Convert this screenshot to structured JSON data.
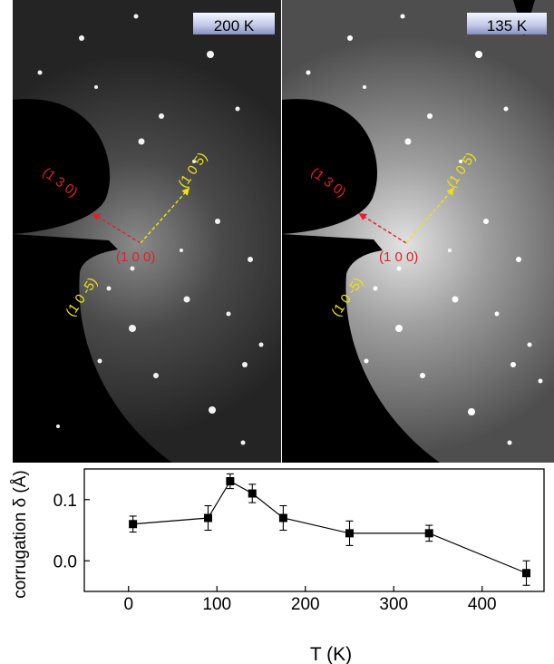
{
  "panels": [
    {
      "temperature_label": "200 K",
      "spots": [
        {
          "label": "(1 3 0)",
          "color": "#e0202a"
        },
        {
          "label": "(1 0 5)",
          "color": "#f0e018"
        },
        {
          "label": "(1 0 0)",
          "color": "#e0202a"
        },
        {
          "label": "(1 0 -5)",
          "color": "#f0e018"
        }
      ]
    },
    {
      "temperature_label": "135 K",
      "spots": [
        {
          "label": "(1 3 0)",
          "color": "#e0202a"
        },
        {
          "label": "(1 0 5)",
          "color": "#f0e018"
        },
        {
          "label": "(1 0 0)",
          "color": "#e0202a"
        },
        {
          "label": "(1 0 -5)",
          "color": "#f0e018"
        }
      ]
    }
  ],
  "chart_data": {
    "type": "line",
    "xlabel": "T (K)",
    "ylabel": "corrugation δ (Å)",
    "xlim": [
      -50,
      470
    ],
    "ylim": [
      -0.05,
      0.15
    ],
    "xticks": [
      0,
      100,
      200,
      300,
      400
    ],
    "yticks": [
      0.0,
      0.1
    ],
    "ytick_labels": [
      "0.0",
      "0.1"
    ],
    "marker": "square",
    "color": "#000000",
    "grid": false,
    "series": [
      {
        "x": [
          5,
          90,
          115,
          140,
          175,
          250,
          340,
          450
        ],
        "y": [
          0.06,
          0.07,
          0.13,
          0.11,
          0.07,
          0.045,
          0.045,
          -0.02
        ],
        "yerr": [
          0.013,
          0.02,
          0.012,
          0.015,
          0.02,
          0.02,
          0.013,
          0.02
        ]
      }
    ]
  }
}
